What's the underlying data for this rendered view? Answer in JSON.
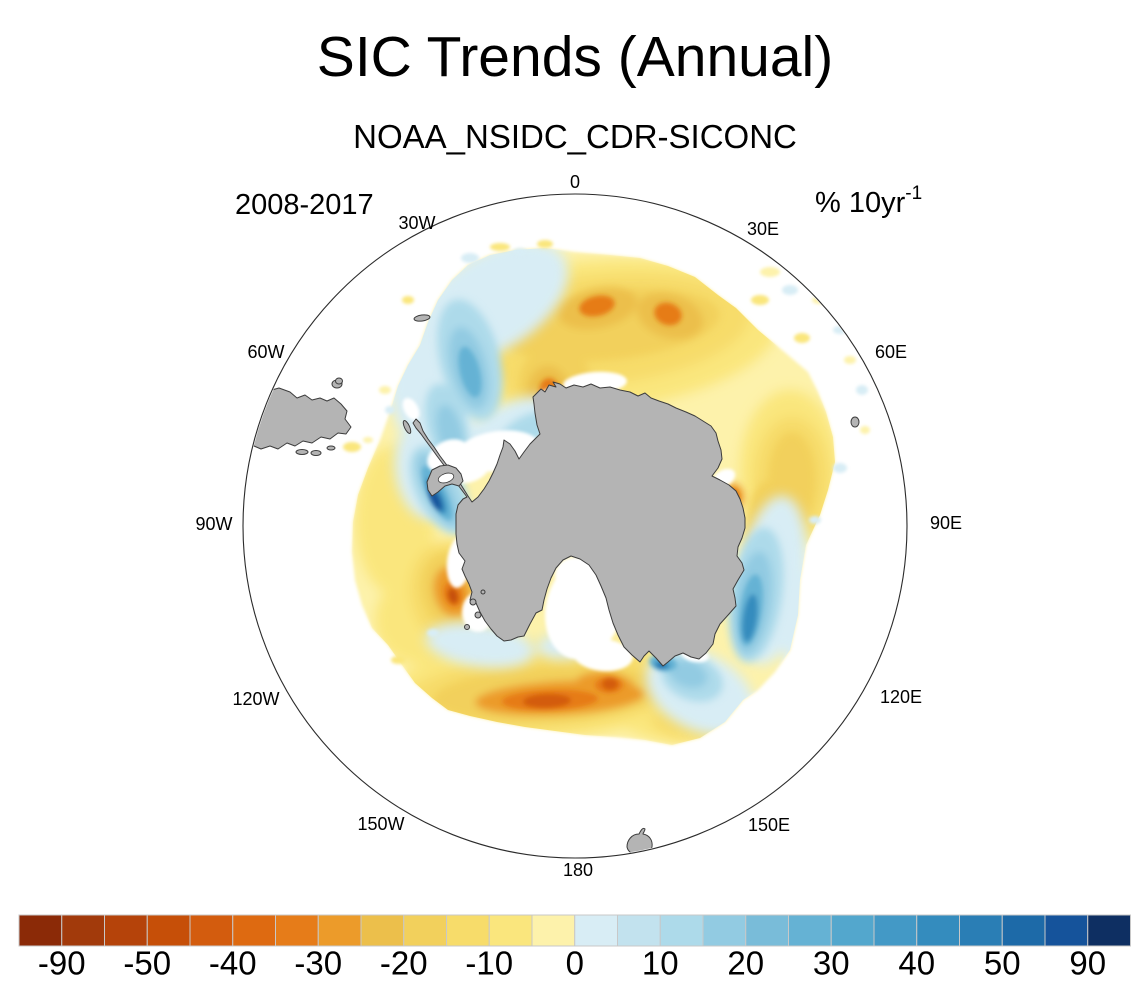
{
  "title": "SIC Trends (Annual)",
  "subtitle": "NOAA_NSIDC_CDR-SICONC",
  "annotations": {
    "period": "2008-2017",
    "units_prefix": "% 10yr",
    "units_exponent": "-1"
  },
  "map": {
    "longitude_labels": [
      "0",
      "30E",
      "60E",
      "90E",
      "120E",
      "150E",
      "180",
      "150W",
      "120W",
      "90W",
      "60W",
      "30W"
    ],
    "land_color": "#b4b4b4",
    "ocean_color": "#ffffff",
    "coast_outline_color": "#3c3c3c",
    "circle_outline_color": "#2b2b2b"
  },
  "colorbar": {
    "box_colors": [
      "#8b2a07",
      "#a23a0b",
      "#b5430a",
      "#c64f08",
      "#d35c0e",
      "#de6a11",
      "#e67c19",
      "#ec9b2a",
      "#ecbf4b",
      "#f2d05c",
      "#f7dc6a",
      "#fae67d",
      "#fdf2ab",
      "#d8edf5",
      "#c2e2ee",
      "#addaea",
      "#92cbe2",
      "#79bcd9",
      "#65b2d4",
      "#53a7cd",
      "#4399c6",
      "#348cbe",
      "#2a7eb5",
      "#1d6aa8",
      "#15539b",
      "#0e2f62"
    ],
    "tick_labels": [
      "-90",
      "-50",
      "-40",
      "-30",
      "-20",
      "-10",
      "0",
      "10",
      "20",
      "30",
      "40",
      "50",
      "90"
    ],
    "tick_boundary_indices": [
      1,
      3,
      5,
      7,
      9,
      11,
      13,
      15,
      17,
      19,
      21,
      23,
      25
    ]
  },
  "chart_data": {
    "type": "heatmap",
    "title": "SIC Trends (Annual)",
    "subtitle": "NOAA_NSIDC_CDR-SICONC",
    "period": "2008-2017",
    "units": "% 10yr-1",
    "projection": "South polar stereographic, Antarctica centered, 0 longitude at top, East clockwise",
    "legend_position": "bottom horizontal labelbar",
    "contour_boundaries": [
      -90,
      -70,
      -50,
      -45,
      -40,
      -35,
      -30,
      -25,
      -20,
      -15,
      -10,
      -5,
      0,
      5,
      10,
      15,
      20,
      25,
      30,
      35,
      40,
      45,
      50,
      70,
      90
    ],
    "labeled_ticks": [
      -90,
      -50,
      -40,
      -30,
      -20,
      -10,
      0,
      10,
      20,
      30,
      40,
      50,
      90
    ],
    "palette": [
      "#8b2a07",
      "#a23a0b",
      "#b5430a",
      "#c64f08",
      "#d35c0e",
      "#de6a11",
      "#e67c19",
      "#ec9b2a",
      "#ecbf4b",
      "#f2d05c",
      "#f7dc6a",
      "#fae67d",
      "#fdf2ab",
      "#d8edf5",
      "#c2e2ee",
      "#addaea",
      "#92cbe2",
      "#79bcd9",
      "#65b2d4",
      "#53a7cd",
      "#4399c6",
      "#348cbe",
      "#2a7eb5",
      "#1d6aa8",
      "#15539b",
      "#0e2f62"
    ],
    "sign_convention": "blues positive SIC trend, oranges negative SIC trend, white no data / outside ice zone, gray land",
    "features": [
      {
        "region": "Bellingshausen Sea, immediately west of Antarctic Peninsula (~70W)",
        "trend_pct_per_10yr": 70
      },
      {
        "region": "Weddell sector inner band northeast of Peninsula (~40W-55W)",
        "trend_pct_per_10yr": 25
      },
      {
        "region": "Outer arc 0-30W north of Weddell Sea",
        "trend_pct_per_10yr": 10
      },
      {
        "region": "Broad outer arc 10W-60E (Dronning Maud Land offshore)",
        "trend_pct_per_10yr": -20
      },
      {
        "region": "East Antarctic coastal band 90E-120E",
        "trend_pct_per_10yr": 40
      },
      {
        "region": "Small coastal spot ~140E (D'Urville Sea)",
        "trend_pct_per_10yr": 45
      },
      {
        "region": "Ross Sea - Amundsen Sea band (~130W-180)",
        "trend_pct_per_10yr": -45
      },
      {
        "region": "Amundsen Sea coastal spot (~105W)",
        "trend_pct_per_10yr": -40
      },
      {
        "region": "Prydz Bay coastal spot (~75E)",
        "trend_pct_per_10yr": -30
      }
    ]
  }
}
